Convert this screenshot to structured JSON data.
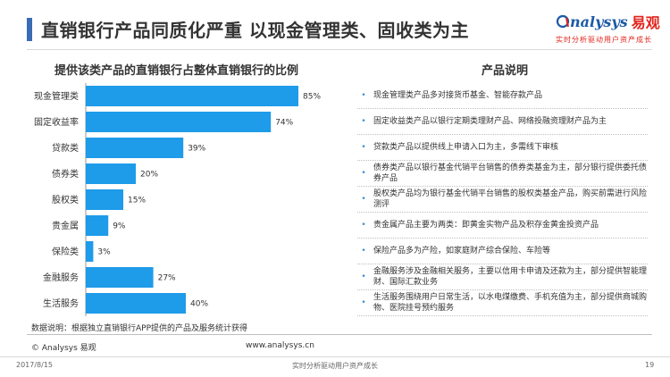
{
  "header": {
    "title": "直销银行产品同质化严重  以现金管理类、固收类为主",
    "logo_text": "nalysys",
    "logo_cn": "易观",
    "logo_sub": "实时分析驱动用户资产成长"
  },
  "chart_title": "提供该类产品的直销银行占整体直销银行的比例",
  "desc_title": "产品说明",
  "chart_data": {
    "type": "bar",
    "orientation": "horizontal",
    "title": "提供该类产品的直销银行占整体直销银行的比例",
    "categories": [
      "现金管理类",
      "固定收益率",
      "贷款类",
      "债券类",
      "股权类",
      "贵金属",
      "保险类",
      "金融服务",
      "生活服务"
    ],
    "values": [
      85,
      74,
      39,
      20,
      15,
      9,
      3,
      27,
      40
    ],
    "value_labels": [
      "85%",
      "74%",
      "39%",
      "20%",
      "15%",
      "9%",
      "3%",
      "27%",
      "40%"
    ],
    "unit": "%",
    "xlim": [
      0,
      100
    ],
    "bar_color": "#1e9be9",
    "grid": false
  },
  "descriptions": [
    "现金管理类产品多对接货币基金、智能存款产品",
    "固定收益类产品以银行定期类理财产品、网络投融资理财产品为主",
    "贷款类产品以提供线上申请入口为主，多需线下审核",
    "债券类产品以银行基金代销平台销售的债券类基金为主，部分银行提供委托债券产品",
    "股权类产品均为银行基金代销平台销售的股权类基金产品，购买前需进行风险测评",
    "贵金属产品主要为两类：即黄金实物产品及积存金黄金投资产品",
    "保险产品多为产险，如家庭财产综合保险、车险等",
    "金融服务涉及金融相关服务，主要以信用卡申请及还款为主，部分提供智能理财、国际汇款业务",
    "生活服务围绕用户日常生活，以水电煤缴费、手机充值为主，部分提供商城购物、医院挂号预约服务"
  ],
  "note": "数据说明：根据独立直销银行APP提供的产品及服务统计获得",
  "copyright": "© Analysys 易观",
  "website": "www.analysys.cn",
  "footer": {
    "date": "2017/8/15",
    "slogan": "实时分析驱动用户资产成长",
    "page": "19"
  },
  "colors": {
    "accent": "#3a6bb5",
    "bar": "#1e9be9",
    "brand_red": "#e2231a",
    "brand_blue": "#1c5aa6"
  }
}
